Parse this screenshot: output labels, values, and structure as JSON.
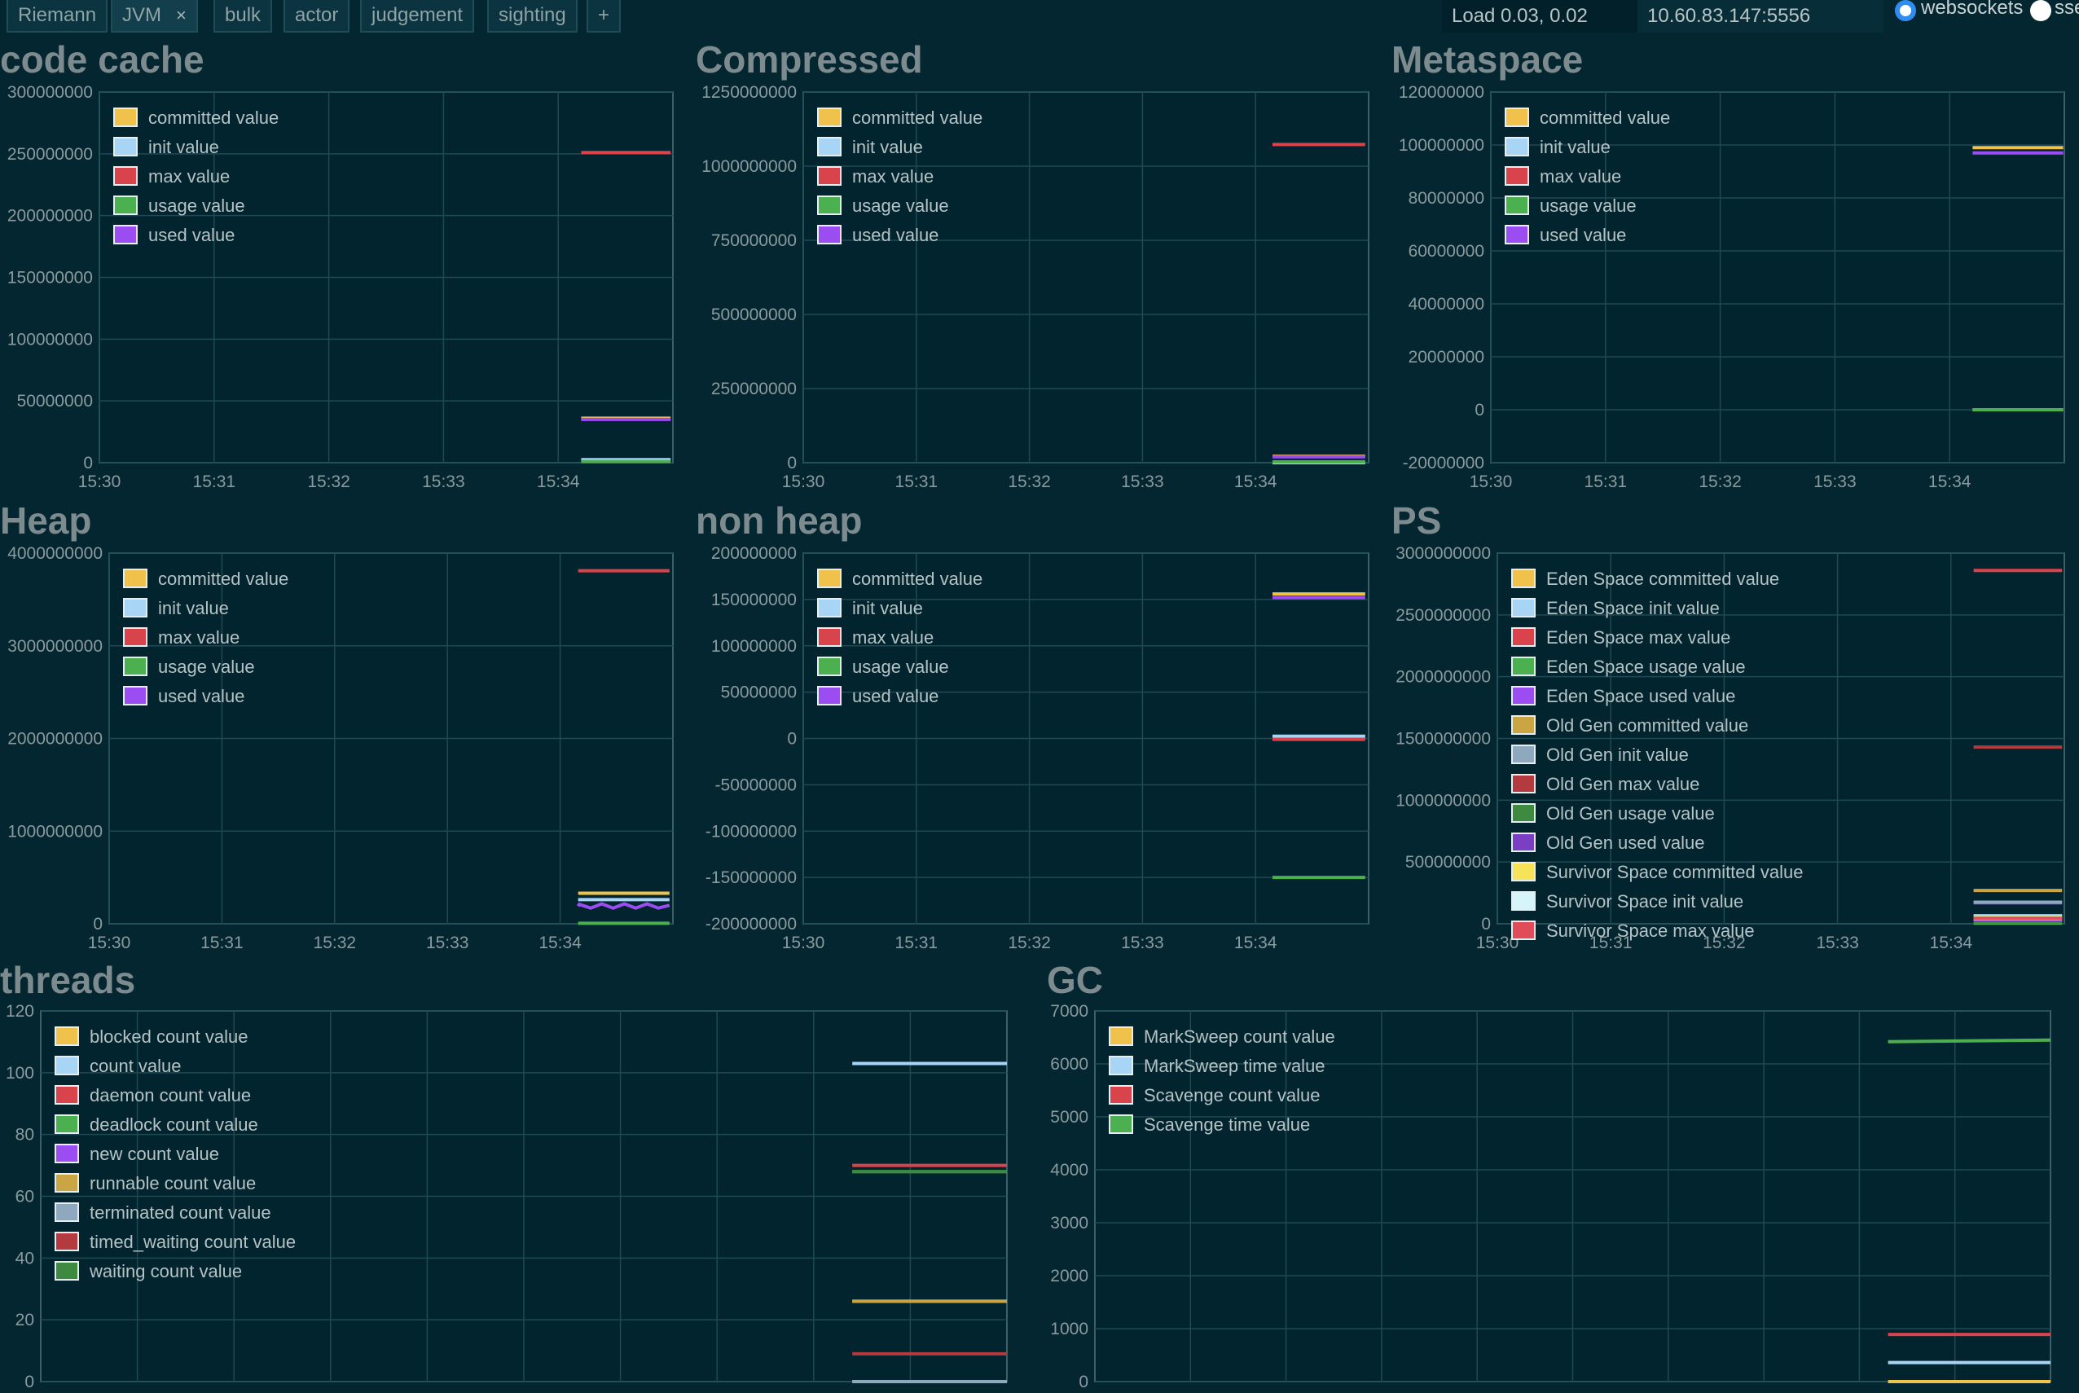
{
  "topbar": {
    "tabs": [
      {
        "label": "Riemann"
      },
      {
        "label": "JVM",
        "close": "×"
      },
      {
        "label": "bulk"
      },
      {
        "label": "actor"
      },
      {
        "label": "judgement"
      },
      {
        "label": "sighting"
      },
      {
        "label": "+"
      }
    ],
    "load": "Load 0.03, 0.02",
    "server": "10.60.83.147:5556",
    "transport_options": [
      {
        "label": "websockets",
        "selected": true
      },
      {
        "label": "sse",
        "selected": false
      }
    ]
  },
  "colors": {
    "background": "#032631",
    "plot_background": "#02242e",
    "grid": "#1f4a53",
    "title": "#7d8b8e",
    "tick": "#8b9a9d"
  },
  "chart_data": [
    {
      "title": "code cache",
      "type": "line",
      "x_ticks": [
        "15:30",
        "15:31",
        "15:32",
        "15:33",
        "15:34"
      ],
      "ylim": [
        0,
        300000000
      ],
      "y_ticks": [
        "0",
        "50000000",
        "100000000",
        "150000000",
        "200000000",
        "250000000",
        "300000000"
      ],
      "legend_position": "top-left",
      "series": [
        {
          "name": "committed value",
          "color": "#f0c24c",
          "x": [
            4.2,
            4.98
          ],
          "values": [
            36000000,
            36000000
          ]
        },
        {
          "name": "init value",
          "color": "#a8d4f5",
          "x": [
            4.2,
            4.98
          ],
          "values": [
            2500000,
            2500000
          ]
        },
        {
          "name": "max value",
          "color": "#d9434b",
          "x": [
            4.2,
            4.98
          ],
          "values": [
            251000000,
            251000000
          ]
        },
        {
          "name": "usage value",
          "color": "#4cb050",
          "x": [
            4.2,
            4.98
          ],
          "values": [
            1000000,
            1000000
          ]
        },
        {
          "name": "used value",
          "color": "#9b4df2",
          "x": [
            4.2,
            4.98
          ],
          "values": [
            35000000,
            35000000
          ]
        }
      ]
    },
    {
      "title": "Compressed",
      "type": "line",
      "x_ticks": [
        "15:30",
        "15:31",
        "15:32",
        "15:33",
        "15:34"
      ],
      "ylim": [
        0,
        1250000000
      ],
      "y_ticks": [
        "0",
        "250000000",
        "500000000",
        "750000000",
        "1000000000",
        "1250000000"
      ],
      "legend_position": "top-left",
      "series": [
        {
          "name": "committed value",
          "color": "#f0c24c",
          "x": [
            4.15,
            4.97
          ],
          "values": [
            22000000,
            22000000
          ]
        },
        {
          "name": "init value",
          "color": "#a8d4f5",
          "x": [
            4.15,
            4.97
          ],
          "values": [
            0,
            0
          ]
        },
        {
          "name": "max value",
          "color": "#d9434b",
          "x": [
            4.15,
            4.97
          ],
          "values": [
            1073000000,
            1073000000
          ]
        },
        {
          "name": "usage value",
          "color": "#4cb050",
          "x": [
            4.15,
            4.97
          ],
          "values": [
            3000000,
            3000000
          ]
        },
        {
          "name": "used value",
          "color": "#9b4df2",
          "x": [
            4.15,
            4.97
          ],
          "values": [
            20000000,
            20000000
          ]
        }
      ]
    },
    {
      "title": "Metaspace",
      "type": "line",
      "x_ticks": [
        "15:30",
        "15:31",
        "15:32",
        "15:33",
        "15:34"
      ],
      "ylim": [
        -20000000,
        120000000
      ],
      "y_ticks": [
        "-20000000",
        "0",
        "20000000",
        "40000000",
        "60000000",
        "80000000",
        "100000000",
        "120000000"
      ],
      "legend_position": "top-left",
      "series": [
        {
          "name": "committed value",
          "color": "#f0c24c",
          "x": [
            4.2,
            4.99
          ],
          "values": [
            99000000,
            99000000
          ]
        },
        {
          "name": "init value",
          "color": "#a8d4f5",
          "x": [
            4.2,
            4.99
          ],
          "values": [
            0,
            0
          ]
        },
        {
          "name": "max value",
          "color": "#d9434b",
          "x": [
            4.2,
            4.99
          ],
          "values": [
            -1,
            -1
          ]
        },
        {
          "name": "usage value",
          "color": "#4cb050",
          "x": [
            4.2,
            4.99
          ],
          "values": [
            0,
            0
          ]
        },
        {
          "name": "used value",
          "color": "#9b4df2",
          "x": [
            4.2,
            4.99
          ],
          "values": [
            97000000,
            97000000
          ]
        }
      ]
    },
    {
      "title": "Heap",
      "type": "line",
      "x_ticks": [
        "15:30",
        "15:31",
        "15:32",
        "15:33",
        "15:34"
      ],
      "ylim": [
        0,
        4000000000
      ],
      "y_ticks": [
        "0",
        "1000000000",
        "2000000000",
        "3000000000",
        "4000000000"
      ],
      "legend_position": "top-left",
      "series": [
        {
          "name": "committed value",
          "color": "#f0c24c",
          "x": [
            4.16,
            4.97
          ],
          "values": [
            330000000,
            330000000
          ]
        },
        {
          "name": "init value",
          "color": "#a8d4f5",
          "x": [
            4.16,
            4.97
          ],
          "values": [
            260000000,
            260000000
          ]
        },
        {
          "name": "max value",
          "color": "#d9434b",
          "x": [
            4.16,
            4.97
          ],
          "values": [
            3810000000,
            3810000000
          ]
        },
        {
          "name": "usage value",
          "color": "#4cb050",
          "x": [
            4.16,
            4.97
          ],
          "values": [
            5000000,
            5000000
          ]
        },
        {
          "name": "used value",
          "color": "#9b4df2",
          "x": [
            4.16,
            4.17,
            4.27,
            4.37,
            4.47,
            4.57,
            4.67,
            4.77,
            4.87,
            4.97
          ],
          "values": [
            190000000,
            210000000,
            170000000,
            215000000,
            170000000,
            215000000,
            170000000,
            215000000,
            170000000,
            200000000
          ]
        }
      ]
    },
    {
      "title": "non heap",
      "type": "line",
      "x_ticks": [
        "15:30",
        "15:31",
        "15:32",
        "15:33",
        "15:34"
      ],
      "ylim": [
        -200000000,
        200000000
      ],
      "y_ticks": [
        "-200000000",
        "-150000000",
        "-100000000",
        "-50000000",
        "0",
        "50000000",
        "100000000",
        "150000000",
        "200000000"
      ],
      "legend_position": "top-left",
      "series": [
        {
          "name": "committed value",
          "color": "#f0c24c",
          "x": [
            4.15,
            4.97
          ],
          "values": [
            156000000,
            156000000
          ]
        },
        {
          "name": "init value",
          "color": "#a8d4f5",
          "x": [
            4.15,
            4.97
          ],
          "values": [
            2500000,
            2500000
          ]
        },
        {
          "name": "max value",
          "color": "#d9434b",
          "x": [
            4.15,
            4.97
          ],
          "values": [
            -1000000,
            -1000000
          ]
        },
        {
          "name": "usage value",
          "color": "#4cb050",
          "x": [
            4.15,
            4.97
          ],
          "values": [
            -150000000,
            -150000000
          ]
        },
        {
          "name": "used value",
          "color": "#9b4df2",
          "x": [
            4.15,
            4.97
          ],
          "values": [
            152000000,
            152000000
          ]
        }
      ]
    },
    {
      "title": "PS",
      "type": "line",
      "x_ticks": [
        "15:30",
        "15:31",
        "15:32",
        "15:33",
        "15:34"
      ],
      "ylim": [
        0,
        3000000000
      ],
      "y_ticks": [
        "0",
        "500000000",
        "1000000000",
        "1500000000",
        "2000000000",
        "2500000000",
        "3000000000"
      ],
      "legend_position": "top-left",
      "series": [
        {
          "name": "Eden Space committed value",
          "color": "#f0c24c",
          "x": [
            4.2,
            4.98
          ],
          "values": [
            60000000,
            60000000
          ]
        },
        {
          "name": "Eden Space init value",
          "color": "#a8d4f5",
          "x": [
            4.2,
            4.98
          ],
          "values": [
            65000000,
            65000000
          ]
        },
        {
          "name": "Eden Space max value",
          "color": "#d9434b",
          "x": [
            4.2,
            4.98
          ],
          "values": [
            2860000000,
            2860000000
          ]
        },
        {
          "name": "Eden Space usage value",
          "color": "#4cb050",
          "x": [
            4.2,
            4.98
          ],
          "values": [
            5000000,
            5000000
          ]
        },
        {
          "name": "Eden Space used value",
          "color": "#9b4df2",
          "x": [
            4.2,
            4.98
          ],
          "values": [
            170000000,
            170000000
          ]
        },
        {
          "name": "Old Gen committed value",
          "color": "#c9a544",
          "x": [
            4.2,
            4.98
          ],
          "values": [
            270000000,
            270000000
          ]
        },
        {
          "name": "Old Gen init value",
          "color": "#8ea8be",
          "x": [
            4.2,
            4.98
          ],
          "values": [
            175000000,
            175000000
          ]
        },
        {
          "name": "Old Gen max value",
          "color": "#b33a3f",
          "x": [
            4.2,
            4.98
          ],
          "values": [
            1430000000,
            1430000000
          ]
        },
        {
          "name": "Old Gen usage value",
          "color": "#3d8a40",
          "x": [
            4.2,
            4.98
          ],
          "values": [
            15000000,
            15000000
          ]
        },
        {
          "name": "Old Gen used value",
          "color": "#7b3fc4",
          "x": [
            4.2,
            4.98
          ],
          "values": [
            30000000,
            30000000
          ]
        },
        {
          "name": "Survivor Space committed value",
          "color": "#f7e35a",
          "x": [
            4.2,
            4.98
          ],
          "values": [
            50000000,
            50000000
          ]
        },
        {
          "name": "Survivor Space init value",
          "color": "#d6f5fb",
          "x": [
            4.2,
            4.98
          ],
          "values": [
            40000000,
            40000000
          ]
        },
        {
          "name": "Survivor Space max value",
          "color": "#e04c5a",
          "x": [
            4.2,
            4.98
          ],
          "values": [
            45000000,
            45000000
          ]
        }
      ]
    },
    {
      "title": "threads",
      "type": "line",
      "x_ticks": [],
      "ylim": [
        0,
        120
      ],
      "y_ticks": [
        "0",
        "20",
        "40",
        "60",
        "80",
        "100",
        "120"
      ],
      "legend_position": "top-left",
      "series": [
        {
          "name": "blocked count value",
          "color": "#f0c24c",
          "x": [
            0.84,
            1.0
          ],
          "values": [
            26,
            26
          ]
        },
        {
          "name": "count value",
          "color": "#a8d4f5",
          "x": [
            0.84,
            1.0
          ],
          "values": [
            103,
            103
          ]
        },
        {
          "name": "daemon count value",
          "color": "#d9434b",
          "x": [
            0.84,
            1.0
          ],
          "values": [
            70,
            70
          ]
        },
        {
          "name": "deadlock count value",
          "color": "#4cb050",
          "x": [
            0.84,
            1.0
          ],
          "values": [
            68,
            68
          ]
        },
        {
          "name": "new count value",
          "color": "#9b4df2",
          "x": [
            0.84,
            1.0
          ],
          "values": [
            0,
            0
          ]
        },
        {
          "name": "runnable count value",
          "color": "#c9a544",
          "x": [
            0.84,
            1.0
          ],
          "values": [
            26,
            26
          ]
        },
        {
          "name": "terminated count value",
          "color": "#8ea8be",
          "x": [
            0.84,
            1.0
          ],
          "values": [
            0,
            0
          ]
        },
        {
          "name": "timed_waiting count value",
          "color": "#b33a3f",
          "x": [
            0.84,
            1.0
          ],
          "values": [
            9,
            9
          ]
        },
        {
          "name": "waiting count value",
          "color": "#3d8a40",
          "x": [
            0.84,
            1.0
          ],
          "values": [
            68,
            68
          ]
        }
      ]
    },
    {
      "title": "GC",
      "type": "line",
      "x_ticks": [],
      "ylim": [
        0,
        7000
      ],
      "y_ticks": [
        "0",
        "1000",
        "2000",
        "3000",
        "4000",
        "5000",
        "6000",
        "7000"
      ],
      "legend_position": "top-left",
      "series": [
        {
          "name": "MarkSweep count value",
          "color": "#f0c24c",
          "x": [
            0.83,
            1.0
          ],
          "values": [
            0,
            0
          ]
        },
        {
          "name": "MarkSweep time value",
          "color": "#a8d4f5",
          "x": [
            0.83,
            1.0
          ],
          "values": [
            360,
            360
          ]
        },
        {
          "name": "Scavenge count value",
          "color": "#d9434b",
          "x": [
            0.83,
            1.0
          ],
          "values": [
            890,
            890
          ]
        },
        {
          "name": "Scavenge time value",
          "color": "#4cb050",
          "x": [
            0.83,
            1.0
          ],
          "values": [
            6420,
            6450
          ]
        }
      ]
    }
  ]
}
